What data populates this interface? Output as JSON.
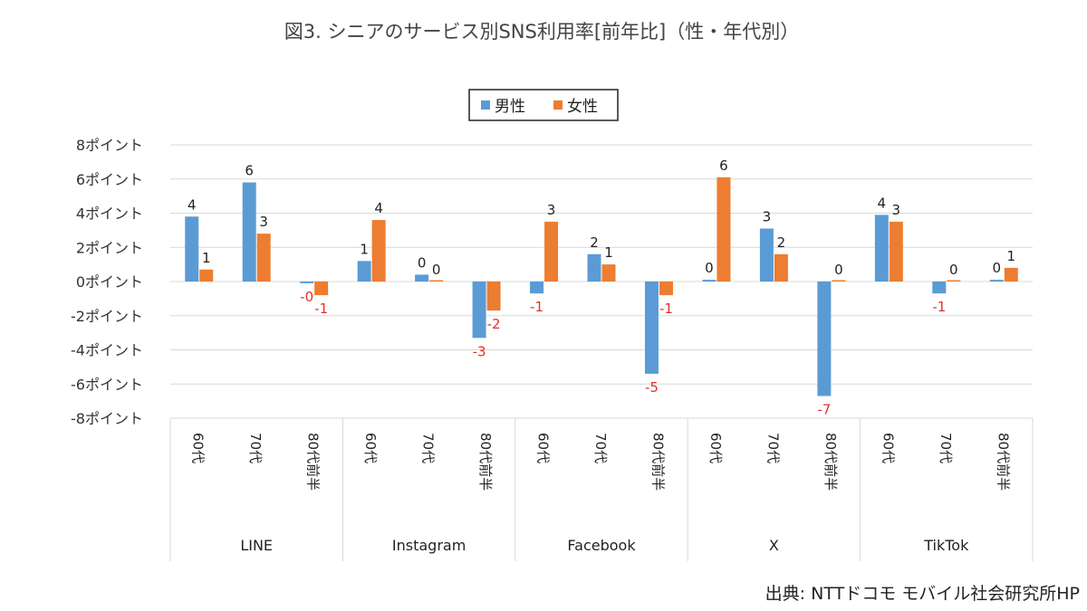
{
  "chart_data": {
    "type": "bar",
    "title": "図3. シニアのサービス別SNS利用率[前年比]（性・年代別）",
    "ylabel": "",
    "ylim": [
      -8,
      8
    ],
    "y_ticks": [
      8,
      6,
      4,
      2,
      0,
      -2,
      -4,
      -6,
      -8
    ],
    "y_tick_labels": [
      "8ポイント",
      "6ポイント",
      "4ポイント",
      "2ポイント",
      "0ポイント",
      "-2ポイント",
      "-4ポイント",
      "-6ポイント",
      "-8ポイント"
    ],
    "grid": true,
    "legend_position": "top-center",
    "groups": [
      {
        "label": "LINE",
        "categories": [
          "60代",
          "70代",
          "80代前半"
        ]
      },
      {
        "label": "Instagram",
        "categories": [
          "60代",
          "70代",
          "80代前半"
        ]
      },
      {
        "label": "Facebook",
        "categories": [
          "60代",
          "70代",
          "80代前半"
        ]
      },
      {
        "label": "X",
        "categories": [
          "60代",
          "70代",
          "80代前半"
        ]
      },
      {
        "label": "TikTok",
        "categories": [
          "60代",
          "70代",
          "80代前半"
        ]
      }
    ],
    "series": [
      {
        "name": "男性",
        "color": "#5B9BD5",
        "values": [
          3.8,
          5.8,
          -0.1,
          1.2,
          0.4,
          -3.3,
          -0.7,
          1.6,
          -5.4,
          0.1,
          3.1,
          -6.7,
          3.9,
          -0.7,
          0.1
        ],
        "labels": [
          "4",
          "6",
          "-0",
          "1",
          "0",
          "-3",
          "-1",
          "2",
          "-5",
          "0",
          "3",
          "-7",
          "4",
          "-1",
          "0"
        ]
      },
      {
        "name": "女性",
        "color": "#ED7D31",
        "values": [
          0.7,
          2.8,
          -0.8,
          3.6,
          0.0,
          -1.7,
          3.5,
          1.0,
          -0.8,
          6.1,
          1.6,
          0.0,
          3.5,
          0.0,
          0.8
        ],
        "labels": [
          "1",
          "3",
          "-1",
          "4",
          "0",
          "-2",
          "3",
          "1",
          "-1",
          "6",
          "2",
          "0",
          "3",
          "0",
          "1"
        ]
      }
    ],
    "negative_label_color": "#E03030",
    "positive_label_color": "#222222"
  },
  "source": "出典: NTTドコモ モバイル社会研究所HP"
}
